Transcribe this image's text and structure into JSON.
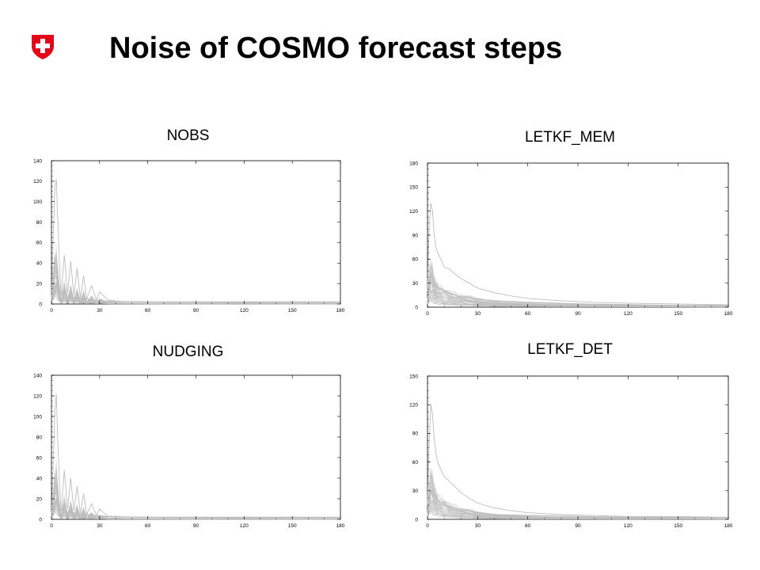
{
  "header": {
    "title": "Noise of COSMO forecast steps"
  },
  "logo": {
    "icon": "swiss-cross-icon",
    "color": "#e3061b"
  },
  "colors": {
    "curves": "#bdbdbd",
    "axis": "#000000"
  },
  "chart_data": [
    {
      "id": "nobs",
      "type": "line",
      "title": "NOBS",
      "xlabel": "",
      "ylabel": "",
      "xlim": [
        0,
        180
      ],
      "ylim": [
        0,
        140
      ],
      "xticks": [
        0,
        30,
        60,
        90,
        120,
        150,
        180
      ],
      "yticks": [
        0,
        20,
        40,
        60,
        80,
        100,
        120,
        140
      ],
      "series": [
        {
          "x": [
            0,
            1,
            2,
            3,
            4,
            5,
            6,
            8,
            10,
            12,
            14,
            16,
            18,
            20,
            22,
            25,
            28,
            30,
            35,
            40,
            45,
            60,
            90,
            120,
            150,
            180
          ],
          "y": [
            2,
            60,
            110,
            122,
            80,
            40,
            8,
            48,
            10,
            42,
            8,
            35,
            6,
            28,
            5,
            18,
            4,
            12,
            4,
            3,
            2.5,
            2,
            1.5,
            1.5,
            1.5,
            1.5
          ]
        },
        {
          "x": [
            0,
            1,
            2,
            3,
            5,
            7,
            10,
            15,
            20,
            30,
            40,
            60,
            90,
            120,
            150,
            180
          ],
          "y": [
            5,
            15,
            10,
            18,
            8,
            12,
            8,
            6,
            5,
            3,
            2.5,
            2,
            2,
            2,
            2,
            2
          ]
        }
      ]
    },
    {
      "id": "letkf-mem",
      "type": "line",
      "title": "LETKF_MEM",
      "xlabel": "",
      "ylabel": "",
      "xlim": [
        0,
        180
      ],
      "ylim": [
        0,
        180
      ],
      "xticks": [
        0,
        30,
        60,
        90,
        120,
        150,
        180
      ],
      "yticks": [
        0,
        30,
        60,
        90,
        120,
        150,
        180
      ],
      "series": [
        {
          "x": [
            0,
            1,
            2,
            3,
            4,
            5,
            6,
            8,
            10,
            13,
            16,
            20,
            25,
            30,
            40,
            50,
            60,
            80,
            100,
            120,
            150,
            180
          ],
          "y": [
            20,
            100,
            130,
            120,
            90,
            75,
            68,
            60,
            50,
            48,
            42,
            36,
            30,
            24,
            18,
            14,
            11,
            8,
            6,
            5,
            4,
            3
          ]
        },
        {
          "x": [
            0,
            2,
            4,
            6,
            10,
            15,
            20,
            30,
            40,
            60,
            90,
            120,
            150,
            180
          ],
          "y": [
            5,
            40,
            30,
            25,
            20,
            16,
            13,
            10,
            8,
            6,
            4,
            3,
            2,
            2
          ]
        }
      ]
    },
    {
      "id": "nudging",
      "type": "line",
      "title": "NUDGING",
      "xlabel": "",
      "ylabel": "",
      "xlim": [
        0,
        180
      ],
      "ylim": [
        0,
        140
      ],
      "xticks": [
        0,
        30,
        60,
        90,
        120,
        150,
        180
      ],
      "yticks": [
        0,
        20,
        40,
        60,
        80,
        100,
        120,
        140
      ],
      "series": [
        {
          "x": [
            0,
            1,
            2,
            3,
            4,
            5,
            6,
            8,
            10,
            12,
            14,
            16,
            18,
            20,
            22,
            25,
            28,
            30,
            35,
            40,
            45,
            60,
            90,
            120,
            150,
            180
          ],
          "y": [
            2,
            50,
            100,
            122,
            75,
            35,
            8,
            48,
            10,
            40,
            8,
            32,
            6,
            25,
            5,
            15,
            4,
            10,
            3,
            3,
            2.5,
            2,
            1.5,
            1.5,
            1.5,
            1.5
          ]
        },
        {
          "x": [
            0,
            1,
            2,
            3,
            5,
            7,
            10,
            15,
            20,
            30,
            40,
            60,
            90,
            120,
            150,
            180
          ],
          "y": [
            5,
            12,
            10,
            18,
            8,
            10,
            7,
            6,
            5,
            3,
            2.5,
            2,
            2,
            2,
            2,
            2
          ]
        }
      ]
    },
    {
      "id": "letkf-det",
      "type": "line",
      "title": "LETKF_DET",
      "xlabel": "",
      "ylabel": "",
      "xlim": [
        0,
        180
      ],
      "ylim": [
        0,
        150
      ],
      "xticks": [
        0,
        30,
        60,
        90,
        120,
        150,
        180
      ],
      "yticks": [
        0,
        30,
        60,
        90,
        120,
        150
      ],
      "series": [
        {
          "x": [
            0,
            1,
            2,
            3,
            4,
            5,
            6,
            8,
            10,
            13,
            16,
            20,
            25,
            30,
            40,
            50,
            60,
            80,
            100,
            120,
            150,
            180
          ],
          "y": [
            15,
            80,
            120,
            110,
            85,
            70,
            60,
            52,
            45,
            40,
            35,
            28,
            22,
            17,
            12,
            9,
            7,
            5,
            4,
            3,
            3,
            2
          ]
        },
        {
          "x": [
            0,
            2,
            4,
            6,
            10,
            15,
            20,
            30,
            40,
            60,
            90,
            120,
            150,
            180
          ],
          "y": [
            5,
            30,
            25,
            20,
            15,
            12,
            10,
            7,
            5,
            4,
            3,
            2,
            2,
            2
          ]
        }
      ]
    }
  ]
}
